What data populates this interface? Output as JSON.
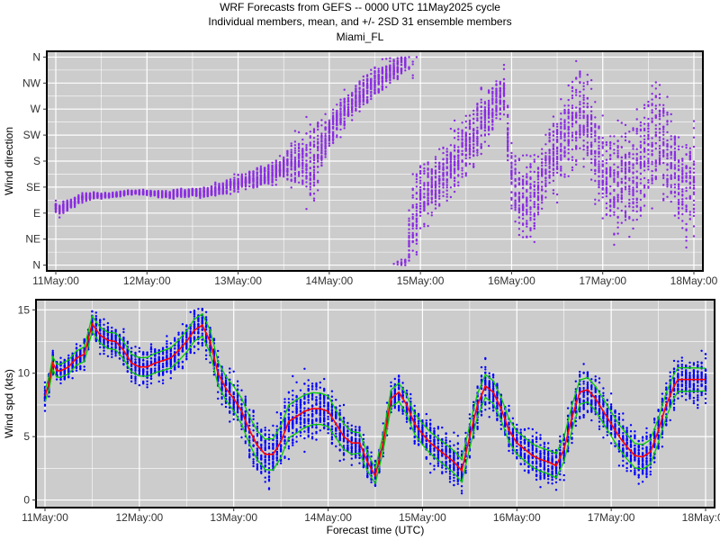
{
  "title_lines": [
    "WRF Forecasts from GEFS --  0000 UTC 11May2025  cycle",
    "Individual members, mean, and +/- 2SD    31 ensemble members",
    "Miami_FL"
  ],
  "x_tick_labels": [
    "11May:00",
    "12May:00",
    "13May:00",
    "14May:00",
    "15May:00",
    "16May:00",
    "17May:00",
    "18May:00"
  ],
  "colors": {
    "panel_bg": "#cccccc",
    "grid": "#ffffff",
    "direction_points": "#8a2be2",
    "speed_points": "#0000ff",
    "mean_line": "#ff0000",
    "sd_lines": "#00cc00"
  },
  "chart_data": [
    {
      "type": "scatter",
      "ylabel": "Wind direction",
      "xlabel": "",
      "xlim": [
        0,
        168
      ],
      "x_ticks": [
        0,
        24,
        48,
        72,
        96,
        120,
        144,
        168
      ],
      "ylim": [
        -10,
        370
      ],
      "y_ticks": [
        0,
        45,
        90,
        135,
        180,
        225,
        270,
        315,
        360
      ],
      "y_tick_labels": [
        "N",
        "NE",
        "E",
        "SE",
        "S",
        "SW",
        "W",
        "NW",
        "N"
      ],
      "members": 31,
      "time_step_hours": 1,
      "mean_direction_deg": [
        [
          0,
          100
        ],
        [
          1,
          95
        ],
        [
          2,
          100
        ],
        [
          4,
          105
        ],
        [
          6,
          115
        ],
        [
          8,
          118
        ],
        [
          10,
          120
        ],
        [
          12,
          120
        ],
        [
          14,
          120
        ],
        [
          16,
          122
        ],
        [
          18,
          124
        ],
        [
          20,
          125
        ],
        [
          22,
          126
        ],
        [
          24,
          125
        ],
        [
          26,
          124
        ],
        [
          28,
          122
        ],
        [
          30,
          122
        ],
        [
          32,
          124
        ],
        [
          34,
          125
        ],
        [
          36,
          126
        ],
        [
          38,
          125
        ],
        [
          40,
          126
        ],
        [
          42,
          130
        ],
        [
          44,
          134
        ],
        [
          46,
          138
        ],
        [
          48,
          142
        ],
        [
          50,
          146
        ],
        [
          52,
          150
        ],
        [
          54,
          154
        ],
        [
          56,
          158
        ],
        [
          58,
          162
        ],
        [
          60,
          168
        ],
        [
          62,
          175
        ],
        [
          64,
          180
        ],
        [
          66,
          175
        ],
        [
          68,
          183
        ],
        [
          70,
          205
        ],
        [
          72,
          230
        ],
        [
          74,
          250
        ],
        [
          76,
          265
        ],
        [
          78,
          280
        ],
        [
          80,
          295
        ],
        [
          82,
          305
        ],
        [
          84,
          315
        ],
        [
          86,
          325
        ],
        [
          88,
          335
        ],
        [
          90,
          345
        ],
        [
          92,
          356
        ],
        [
          94,
          60
        ],
        [
          96,
          120
        ],
        [
          98,
          128
        ],
        [
          100,
          140
        ],
        [
          102,
          155
        ],
        [
          104,
          170
        ],
        [
          106,
          190
        ],
        [
          108,
          205
        ],
        [
          110,
          225
        ],
        [
          112,
          245
        ],
        [
          114,
          265
        ],
        [
          116,
          285
        ],
        [
          118,
          300
        ],
        [
          120,
          150
        ],
        [
          122,
          120
        ],
        [
          124,
          110
        ],
        [
          126,
          120
        ],
        [
          128,
          155
        ],
        [
          130,
          190
        ],
        [
          132,
          200
        ],
        [
          134,
          220
        ],
        [
          136,
          250
        ],
        [
          138,
          275
        ],
        [
          140,
          250
        ],
        [
          142,
          200
        ],
        [
          144,
          150
        ],
        [
          146,
          140
        ],
        [
          148,
          145
        ],
        [
          150,
          150
        ],
        [
          152,
          160
        ],
        [
          154,
          175
        ],
        [
          156,
          200
        ],
        [
          158,
          230
        ],
        [
          160,
          210
        ],
        [
          162,
          175
        ],
        [
          164,
          155
        ],
        [
          166,
          140
        ],
        [
          168,
          140
        ]
      ],
      "direction_spread_deg": [
        [
          0,
          10
        ],
        [
          12,
          4
        ],
        [
          24,
          4
        ],
        [
          36,
          8
        ],
        [
          48,
          12
        ],
        [
          60,
          20
        ],
        [
          64,
          45
        ],
        [
          68,
          70
        ],
        [
          72,
          30
        ],
        [
          84,
          25
        ],
        [
          92,
          20
        ],
        [
          94,
          100
        ],
        [
          98,
          40
        ],
        [
          108,
          50
        ],
        [
          118,
          40
        ],
        [
          120,
          70
        ],
        [
          128,
          60
        ],
        [
          140,
          80
        ],
        [
          144,
          80
        ],
        [
          156,
          90
        ],
        [
          168,
          80
        ]
      ]
    },
    {
      "type": "scatter",
      "ylabel": "Wind spd (kts)",
      "xlabel": "Forecast time (UTC)",
      "xlim": [
        0,
        168
      ],
      "x_ticks": [
        0,
        24,
        48,
        72,
        96,
        120,
        144,
        168
      ],
      "ylim": [
        -0.6,
        15.8
      ],
      "y_ticks": [
        0,
        5,
        10,
        15
      ],
      "members": 31,
      "time_step_hours": 1,
      "mean_kts": [
        [
          0,
          8.2
        ],
        [
          1,
          9.2
        ],
        [
          2,
          10.8
        ],
        [
          3,
          10.2
        ],
        [
          4,
          10.2
        ],
        [
          6,
          10.5
        ],
        [
          8,
          11.2
        ],
        [
          10,
          11.5
        ],
        [
          12,
          13.9
        ],
        [
          14,
          13.0
        ],
        [
          16,
          12.6
        ],
        [
          18,
          12.5
        ],
        [
          20,
          11.8
        ],
        [
          22,
          10.8
        ],
        [
          24,
          10.5
        ],
        [
          26,
          10.5
        ],
        [
          28,
          10.8
        ],
        [
          30,
          11.0
        ],
        [
          32,
          11.2
        ],
        [
          34,
          11.8
        ],
        [
          36,
          12.5
        ],
        [
          38,
          13.4
        ],
        [
          40,
          13.8
        ],
        [
          42,
          12.5
        ],
        [
          44,
          10.0
        ],
        [
          46,
          8.8
        ],
        [
          48,
          8.0
        ],
        [
          50,
          7.0
        ],
        [
          52,
          5.5
        ],
        [
          54,
          4.3
        ],
        [
          56,
          3.6
        ],
        [
          58,
          3.6
        ],
        [
          60,
          4.6
        ],
        [
          62,
          6.2
        ],
        [
          64,
          6.6
        ],
        [
          66,
          7.0
        ],
        [
          68,
          7.2
        ],
        [
          70,
          7.2
        ],
        [
          72,
          7.0
        ],
        [
          74,
          6.0
        ],
        [
          76,
          5.0
        ],
        [
          78,
          4.5
        ],
        [
          80,
          4.5
        ],
        [
          82,
          3.0
        ],
        [
          84,
          1.9
        ],
        [
          86,
          4.5
        ],
        [
          88,
          8.0
        ],
        [
          90,
          8.5
        ],
        [
          92,
          7.5
        ],
        [
          94,
          6.0
        ],
        [
          96,
          5.2
        ],
        [
          98,
          4.5
        ],
        [
          100,
          4.0
        ],
        [
          102,
          3.5
        ],
        [
          104,
          3.0
        ],
        [
          106,
          2.3
        ],
        [
          108,
          5.0
        ],
        [
          110,
          7.5
        ],
        [
          112,
          9.0
        ],
        [
          114,
          8.5
        ],
        [
          116,
          7.2
        ],
        [
          118,
          5.5
        ],
        [
          120,
          4.5
        ],
        [
          122,
          4.0
        ],
        [
          124,
          3.5
        ],
        [
          126,
          3.2
        ],
        [
          128,
          3.0
        ],
        [
          130,
          2.7
        ],
        [
          132,
          4.0
        ],
        [
          134,
          6.5
        ],
        [
          136,
          8.5
        ],
        [
          138,
          8.7
        ],
        [
          140,
          8.0
        ],
        [
          142,
          7.0
        ],
        [
          144,
          6.0
        ],
        [
          146,
          5.0
        ],
        [
          148,
          4.2
        ],
        [
          150,
          3.5
        ],
        [
          152,
          3.4
        ],
        [
          154,
          3.8
        ],
        [
          156,
          5.5
        ],
        [
          158,
          7.5
        ],
        [
          160,
          9.0
        ],
        [
          161,
          9.5
        ],
        [
          168,
          9.5
        ]
      ],
      "sd2_kts": [
        [
          0,
          0.8
        ],
        [
          12,
          1.0
        ],
        [
          24,
          1.2
        ],
        [
          36,
          1.4
        ],
        [
          48,
          1.6
        ],
        [
          56,
          2.0
        ],
        [
          64,
          2.2
        ],
        [
          72,
          2.0
        ],
        [
          84,
          1.0
        ],
        [
          90,
          1.2
        ],
        [
          96,
          1.4
        ],
        [
          108,
          1.5
        ],
        [
          120,
          1.5
        ],
        [
          132,
          1.6
        ],
        [
          144,
          1.6
        ],
        [
          156,
          1.6
        ],
        [
          168,
          1.5
        ]
      ]
    }
  ]
}
